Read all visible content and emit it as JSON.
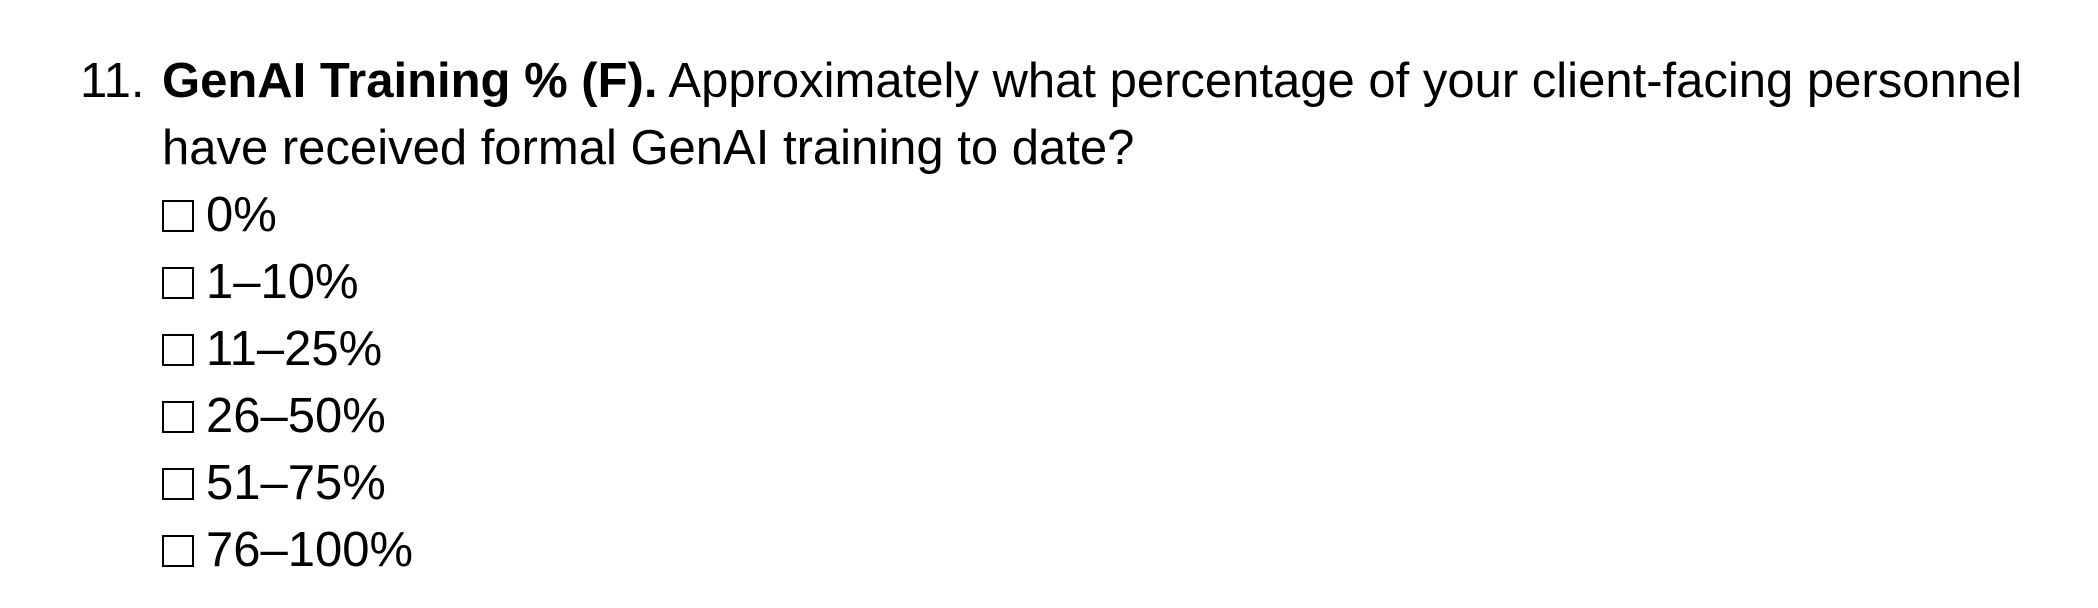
{
  "question": {
    "number": "11.",
    "title": "GenAI Training % (F).",
    "text": "Approximately what percentage of your client-facing personnel have received formal GenAI training to date?",
    "options": [
      {
        "label": "0%"
      },
      {
        "label": "1–10%"
      },
      {
        "label": "11–25%"
      },
      {
        "label": "26–50%"
      },
      {
        "label": "51–75%"
      },
      {
        "label": "76–100%"
      }
    ]
  }
}
